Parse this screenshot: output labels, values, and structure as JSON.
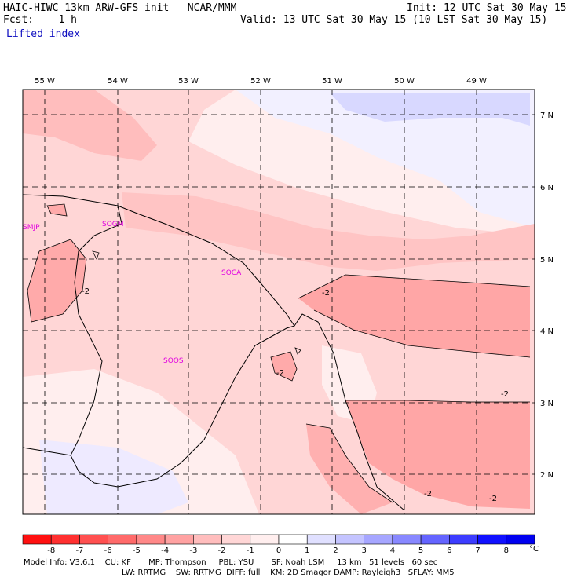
{
  "header": {
    "model_line": "HAIC-HIWC 13km ARW-GFS init   NCAR/MMM",
    "fcst_line": "Fcst:    1 h",
    "init_line": "Init: 12 UTC Sat 30 May 15",
    "valid_line": "Valid: 13 UTC Sat 30 May 15 (10 LST Sat 30 May 15)",
    "field_name": "Lifted index"
  },
  "map": {
    "lon_labels": [
      "55 W",
      "54 W",
      "53 W",
      "52 W",
      "51 W",
      "50 W",
      "49 W"
    ],
    "lat_labels": [
      "7 N",
      "6 N",
      "5 N",
      "4 N",
      "3 N",
      "2 N"
    ],
    "stations": [
      "SMJP",
      "SOGM",
      "SOCA",
      "SOOS"
    ],
    "contour_labels": [
      "-2",
      "-2",
      "-2",
      "-2",
      "-2",
      "-2"
    ],
    "colors": {
      "station": "#e000e0",
      "frame": "#000000"
    }
  },
  "colorbar": {
    "labels": [
      "-8",
      "-7",
      "-6",
      "-5",
      "-4",
      "-3",
      "-2",
      "-1",
      "0",
      "1",
      "2",
      "3",
      "4",
      "5",
      "6",
      "7",
      "8"
    ],
    "unit": "°C",
    "colors": [
      "#ff1010",
      "#ff3030",
      "#ff5050",
      "#ff6a6a",
      "#ff8888",
      "#ffa2a2",
      "#ffbdbd",
      "#ffd6d6",
      "#ffeeee",
      "#ffffff",
      "#e0e0ff",
      "#c4c4ff",
      "#a6a6ff",
      "#8888ff",
      "#6464ff",
      "#3c3cff",
      "#1010ff",
      "#0000f0"
    ]
  },
  "footer": {
    "line1": "Model Info: V3.6.1    CU: KF       MP: Thompson     PBL: YSU       SF: Noah LSM     13 km   51 levels   60 sec",
    "line2": "LW: RRTMG    SW: RRTMG  DIFF: full    KM: 2D Smagor DAMP: Rayleigh3   SFLAY: MM5"
  }
}
